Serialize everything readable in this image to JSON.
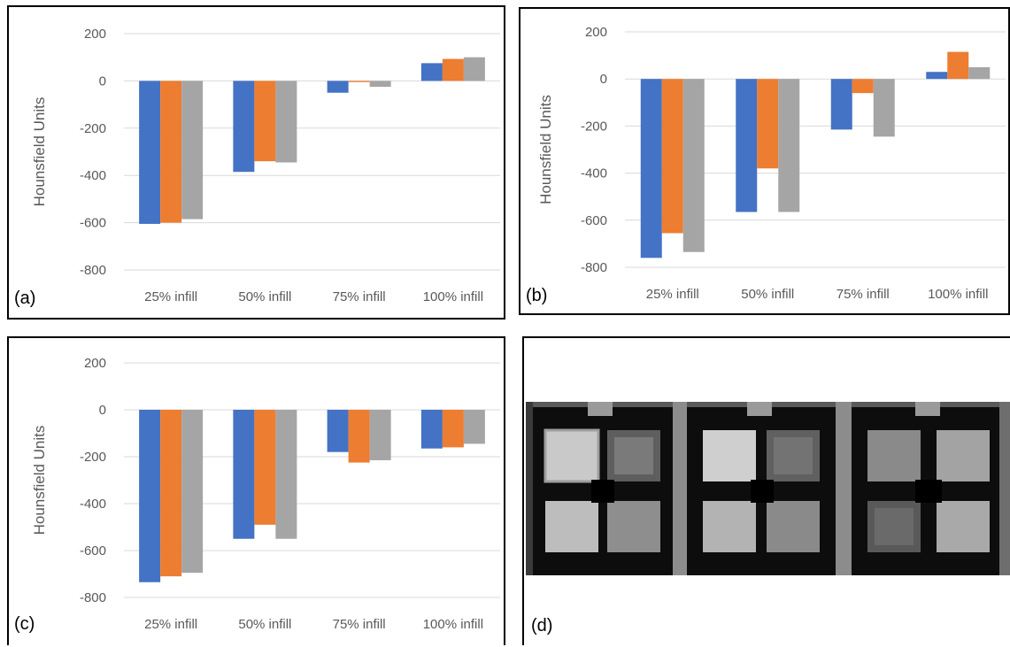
{
  "chart_data": [
    {
      "id": "a",
      "type": "bar",
      "panel_label": "(a)",
      "ylabel": "Hounsfield Units",
      "categories": [
        "25% infill",
        "50% infill",
        "75% infill",
        "100% infill"
      ],
      "yticks": [
        200,
        0,
        -200,
        -400,
        -600,
        -800
      ],
      "ylim": [
        -800,
        200
      ],
      "series": [
        {
          "color": "#4472c4",
          "values": [
            -605,
            -385,
            -50,
            75
          ]
        },
        {
          "color": "#ed7d31",
          "values": [
            -600,
            -340,
            -5,
            93
          ]
        },
        {
          "color": "#a5a5a5",
          "values": [
            -585,
            -345,
            -25,
            100
          ]
        }
      ]
    },
    {
      "id": "b",
      "type": "bar",
      "panel_label": "(b)",
      "ylabel": "Hounsfield Units",
      "categories": [
        "25% infill",
        "50% infill",
        "75% infill",
        "100% infill"
      ],
      "yticks": [
        200,
        0,
        -200,
        -400,
        -600,
        -800
      ],
      "ylim": [
        -800,
        200
      ],
      "series": [
        {
          "color": "#4472c4",
          "values": [
            -760,
            -565,
            -215,
            30
          ]
        },
        {
          "color": "#ed7d31",
          "values": [
            -655,
            -380,
            -60,
            115
          ]
        },
        {
          "color": "#a5a5a5",
          "values": [
            -735,
            -565,
            -245,
            50
          ]
        }
      ]
    },
    {
      "id": "c",
      "type": "bar",
      "panel_label": "(c)",
      "ylabel": "Hounsfield Units",
      "categories": [
        "25% infill",
        "50% infill",
        "75% infill",
        "100% infill"
      ],
      "yticks": [
        200,
        0,
        -200,
        -400,
        -600,
        -800
      ],
      "ylim": [
        -800,
        200
      ],
      "series": [
        {
          "color": "#4472c4",
          "values": [
            -735,
            -550,
            -180,
            -165
          ]
        },
        {
          "color": "#ed7d31",
          "values": [
            -710,
            -490,
            -225,
            -160
          ]
        },
        {
          "color": "#a5a5a5",
          "values": [
            -695,
            -550,
            -215,
            -145
          ]
        }
      ]
    }
  ],
  "panel_d": {
    "panel_label": "(d)"
  }
}
